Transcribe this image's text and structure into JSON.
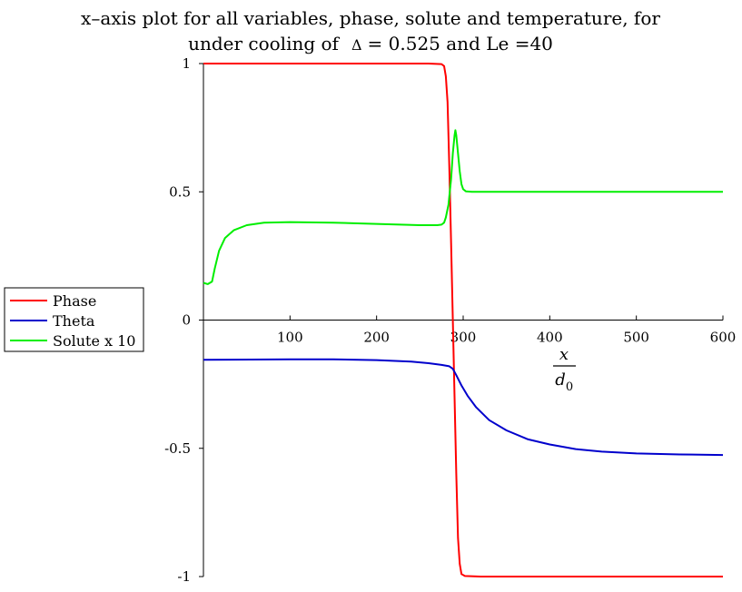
{
  "chart_data": {
    "type": "line",
    "title_line1": "x–axis plot for all variables, phase, solute and temperature, for",
    "title_line2_prefix": "under cooling of",
    "title_delta": "Δ",
    "title_line2_suffix": "= 0.525 and Le =40",
    "xlabel_top": "x",
    "xlabel_bottom": "d",
    "xlabel_sub": "0",
    "xlim": [
      0,
      600
    ],
    "ylim": [
      -1,
      1
    ],
    "x_ticks": [
      {
        "value": 100,
        "label": "100"
      },
      {
        "value": 200,
        "label": "200"
      },
      {
        "value": 300,
        "label": "300"
      },
      {
        "value": 400,
        "label": "400"
      },
      {
        "value": 500,
        "label": "500"
      },
      {
        "value": 600,
        "label": "600"
      }
    ],
    "y_ticks": [
      {
        "value": 1,
        "label": "1"
      },
      {
        "value": 0.5,
        "label": "0.5"
      },
      {
        "value": 0,
        "label": "0"
      },
      {
        "value": -0.5,
        "label": "-0.5"
      },
      {
        "value": -1,
        "label": "-1"
      }
    ],
    "legend_position": "left",
    "series": [
      {
        "name": "Phase",
        "color": "#ff0000",
        "points": [
          [
            0,
            1
          ],
          [
            260,
            1
          ],
          [
            275,
            0.998
          ],
          [
            278,
            0.99
          ],
          [
            280,
            0.95
          ],
          [
            282,
            0.85
          ],
          [
            284,
            0.6
          ],
          [
            286,
            0.3
          ],
          [
            288,
            0
          ],
          [
            290,
            -0.3
          ],
          [
            292,
            -0.6
          ],
          [
            294,
            -0.85
          ],
          [
            296,
            -0.95
          ],
          [
            298,
            -0.99
          ],
          [
            302,
            -0.998
          ],
          [
            320,
            -1
          ],
          [
            600,
            -1
          ]
        ]
      },
      {
        "name": "Theta",
        "color": "#0000cc",
        "points": [
          [
            0,
            -0.155
          ],
          [
            100,
            -0.153
          ],
          [
            150,
            -0.153
          ],
          [
            200,
            -0.156
          ],
          [
            240,
            -0.162
          ],
          [
            260,
            -0.168
          ],
          [
            275,
            -0.175
          ],
          [
            284,
            -0.18
          ],
          [
            288,
            -0.19
          ],
          [
            292,
            -0.215
          ],
          [
            298,
            -0.255
          ],
          [
            305,
            -0.295
          ],
          [
            315,
            -0.34
          ],
          [
            330,
            -0.39
          ],
          [
            350,
            -0.43
          ],
          [
            375,
            -0.465
          ],
          [
            400,
            -0.485
          ],
          [
            430,
            -0.503
          ],
          [
            460,
            -0.513
          ],
          [
            500,
            -0.52
          ],
          [
            550,
            -0.524
          ],
          [
            600,
            -0.526
          ]
        ]
      },
      {
        "name": "Solute x 10",
        "color": "#00ee00",
        "points": [
          [
            0,
            0.145
          ],
          [
            5,
            0.14
          ],
          [
            10,
            0.15
          ],
          [
            13,
            0.2
          ],
          [
            18,
            0.27
          ],
          [
            25,
            0.32
          ],
          [
            35,
            0.35
          ],
          [
            50,
            0.37
          ],
          [
            70,
            0.38
          ],
          [
            100,
            0.382
          ],
          [
            150,
            0.38
          ],
          [
            200,
            0.375
          ],
          [
            250,
            0.37
          ],
          [
            270,
            0.37
          ],
          [
            275,
            0.372
          ],
          [
            278,
            0.38
          ],
          [
            280,
            0.4
          ],
          [
            283,
            0.45
          ],
          [
            286,
            0.55
          ],
          [
            288,
            0.65
          ],
          [
            290,
            0.72
          ],
          [
            291,
            0.74
          ],
          [
            292,
            0.72
          ],
          [
            294,
            0.65
          ],
          [
            296,
            0.58
          ],
          [
            298,
            0.53
          ],
          [
            300,
            0.51
          ],
          [
            303,
            0.502
          ],
          [
            310,
            0.5
          ],
          [
            600,
            0.5
          ]
        ]
      }
    ]
  }
}
